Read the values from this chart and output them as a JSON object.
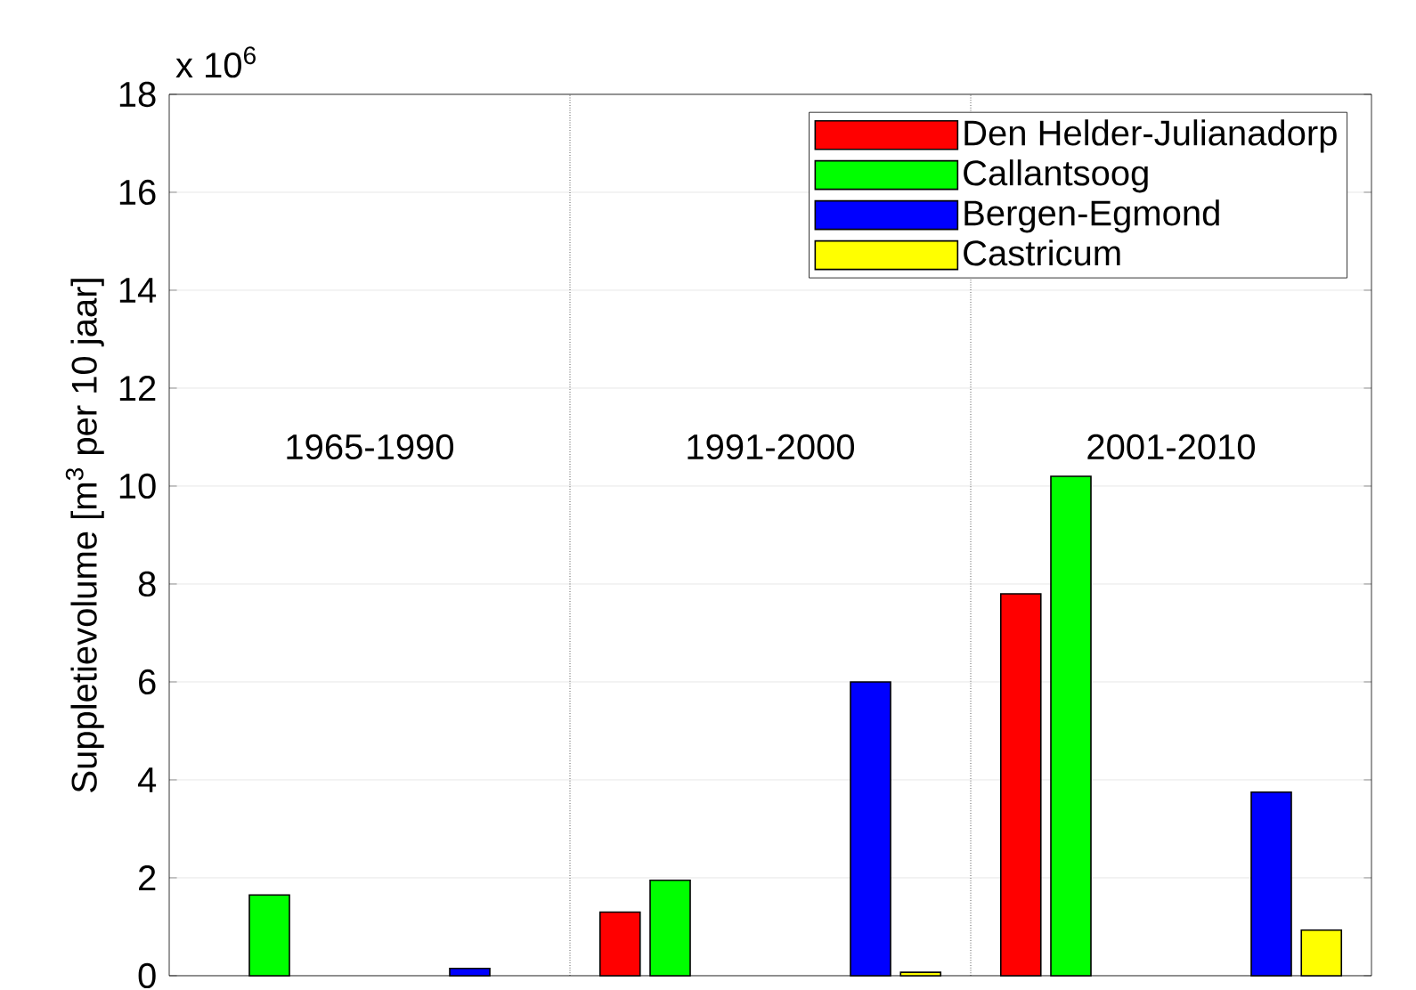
{
  "chart_data": {
    "type": "bar",
    "ylabel": "Suppletievolume [m$^{3}$ per 10 jaar]",
    "annotations": [
      "x 10$^{6}$"
    ],
    "categories": [
      "1965-1990",
      "1991-2000",
      "2001-2010"
    ],
    "series": [
      {
        "name": "Den Helder-Julianadorp",
        "color": "#ff0000",
        "values": [
          null,
          1.3,
          7.8
        ]
      },
      {
        "name": "Callantsoog",
        "color": "#00ff00",
        "values": [
          1.65,
          1.95,
          10.2
        ]
      },
      {
        "name": "Bergen-Egmond",
        "color": "#0000ff",
        "values": [
          0.15,
          6.0,
          3.75
        ]
      },
      {
        "name": "Castricum",
        "color": "#ffff00",
        "values": [
          null,
          0.07,
          0.93
        ]
      }
    ],
    "ylim": [
      0,
      18
    ],
    "yticks": [
      0,
      2,
      4,
      6,
      8,
      10,
      12,
      14,
      16,
      18
    ],
    "grid": "y",
    "legend": "top right",
    "tick_labels": "y"
  }
}
